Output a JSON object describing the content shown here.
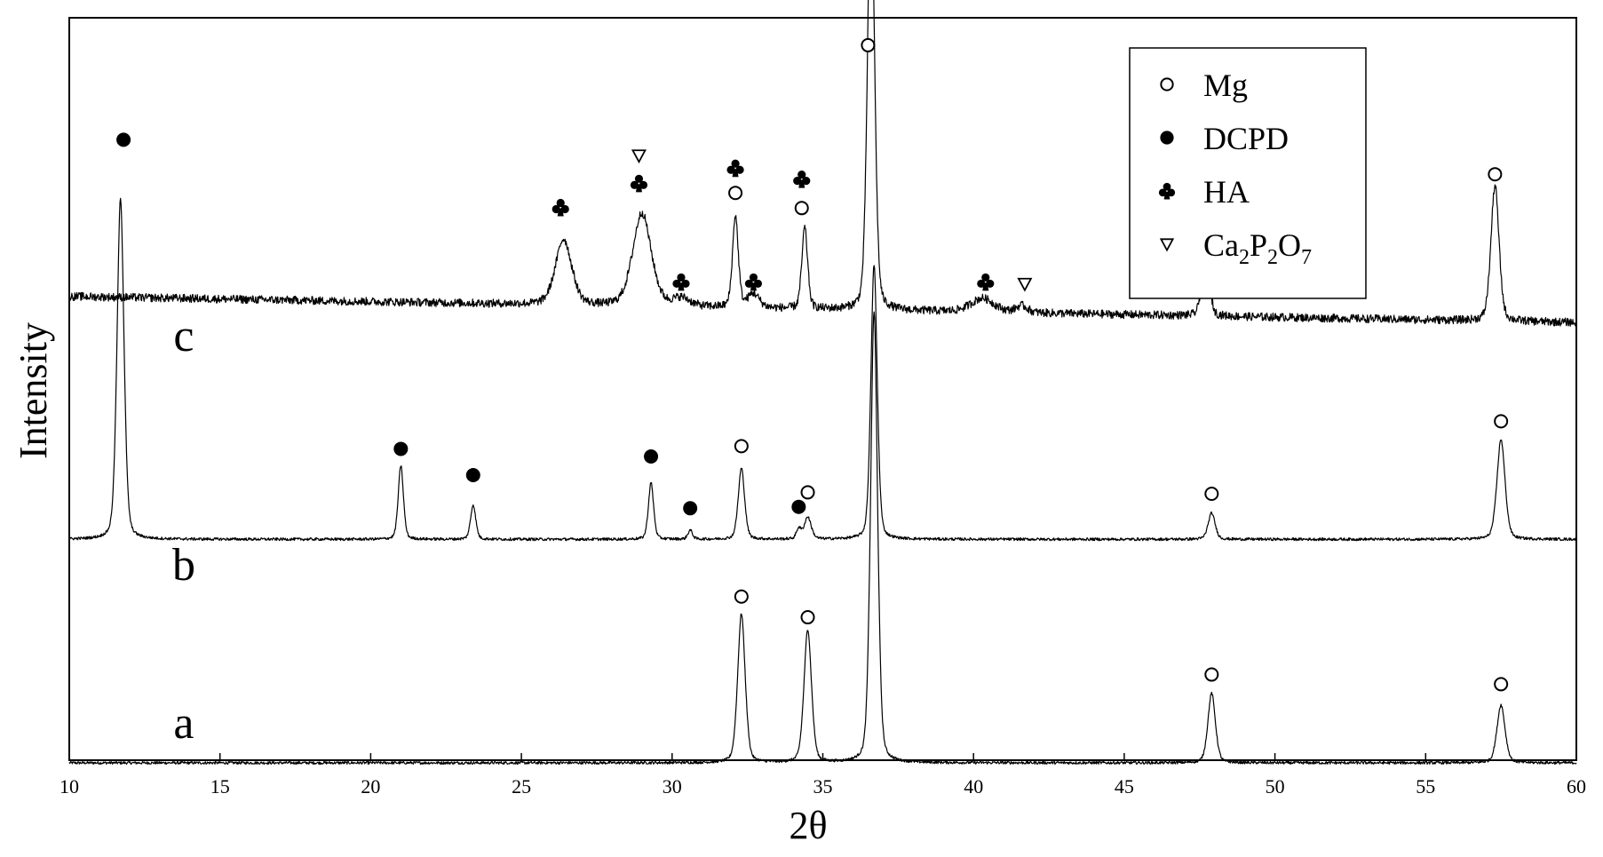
{
  "chart_data": {
    "type": "line",
    "title": "",
    "xlabel": "2θ",
    "ylabel": "Intensity",
    "xlim": [
      10,
      60
    ],
    "x_ticks": [
      10,
      15,
      20,
      25,
      30,
      35,
      40,
      45,
      50,
      55,
      60
    ],
    "y_ticks": [],
    "grid": false,
    "legend_position": "top-right",
    "legend": [
      {
        "marker": "open-circle",
        "label": "Mg"
      },
      {
        "marker": "filled-circle",
        "label": "DCPD"
      },
      {
        "marker": "club",
        "label": "HA"
      },
      {
        "marker": "open-triangle-down",
        "label": "Ca2P2O7",
        "label_parts": [
          [
            "Ca",
            false
          ],
          [
            "2",
            true
          ],
          [
            "P",
            false
          ],
          [
            "2",
            true
          ],
          [
            "O",
            false
          ],
          [
            "7",
            true
          ]
        ]
      }
    ],
    "series": [
      {
        "name": "a",
        "baseline": 0.0,
        "slope": 0.0,
        "noise": 0.002,
        "peaks": [
          {
            "x": 32.3,
            "h": 0.216,
            "w": 0.13
          },
          {
            "x": 34.5,
            "h": 0.193,
            "w": 0.13
          },
          {
            "x": 36.7,
            "h": 0.654,
            "w": 0.12
          },
          {
            "x": 47.9,
            "h": 0.101,
            "w": 0.13
          },
          {
            "x": 57.5,
            "h": 0.084,
            "w": 0.14
          }
        ]
      },
      {
        "name": "b",
        "baseline": 0.324,
        "slope": 0.0,
        "noise": 0.002,
        "peaks": [
          {
            "x": 11.7,
            "h": 0.494,
            "w": 0.12
          },
          {
            "x": 21.0,
            "h": 0.107,
            "w": 0.09
          },
          {
            "x": 23.4,
            "h": 0.05,
            "w": 0.09
          },
          {
            "x": 29.3,
            "h": 0.082,
            "w": 0.09
          },
          {
            "x": 30.6,
            "h": 0.013,
            "w": 0.08
          },
          {
            "x": 32.3,
            "h": 0.103,
            "w": 0.11
          },
          {
            "x": 34.2,
            "h": 0.015,
            "w": 0.08
          },
          {
            "x": 34.5,
            "h": 0.032,
            "w": 0.12
          },
          {
            "x": 36.7,
            "h": 0.398,
            "w": 0.11
          },
          {
            "x": 47.9,
            "h": 0.038,
            "w": 0.12
          },
          {
            "x": 57.5,
            "h": 0.145,
            "w": 0.14
          }
        ]
      },
      {
        "name": "c",
        "baseline": 0.676,
        "slope": -0.000755,
        "noise": 0.006,
        "peaks": [
          {
            "x": 26.4,
            "h": 0.095,
            "w": 0.28
          },
          {
            "x": 29.0,
            "h": 0.135,
            "w": 0.32
          },
          {
            "x": 30.3,
            "h": 0.012,
            "w": 0.3
          },
          {
            "x": 32.1,
            "h": 0.133,
            "w": 0.1
          },
          {
            "x": 32.7,
            "h": 0.02,
            "w": 0.2
          },
          {
            "x": 34.4,
            "h": 0.117,
            "w": 0.1
          },
          {
            "x": 36.6,
            "h": 0.641,
            "w": 0.12
          },
          {
            "x": 40.3,
            "h": 0.02,
            "w": 0.4
          },
          {
            "x": 41.6,
            "h": 0.01,
            "w": 0.2
          },
          {
            "x": 47.7,
            "h": 0.107,
            "w": 0.12
          },
          {
            "x": 57.3,
            "h": 0.197,
            "w": 0.14
          }
        ]
      }
    ],
    "annotations": [
      {
        "marker": "open-circle",
        "x": 32.3,
        "y": 0.241
      },
      {
        "marker": "open-circle",
        "x": 34.5,
        "y": 0.211
      },
      {
        "marker": "open-circle",
        "x": 47.9,
        "y": 0.128
      },
      {
        "marker": "open-circle",
        "x": 57.5,
        "y": 0.114
      },
      {
        "marker": "filled-circle",
        "x": 11.8,
        "y": 0.903
      },
      {
        "marker": "filled-circle",
        "x": 21.0,
        "y": 0.455
      },
      {
        "marker": "filled-circle",
        "x": 23.4,
        "y": 0.417
      },
      {
        "marker": "filled-circle",
        "x": 29.3,
        "y": 0.444
      },
      {
        "marker": "filled-circle",
        "x": 30.6,
        "y": 0.369
      },
      {
        "marker": "filled-circle",
        "x": 34.2,
        "y": 0.371
      },
      {
        "marker": "open-circle",
        "x": 32.3,
        "y": 0.459
      },
      {
        "marker": "open-circle",
        "x": 34.5,
        "y": 0.392
      },
      {
        "marker": "open-circle",
        "x": 47.9,
        "y": 0.39
      },
      {
        "marker": "open-circle",
        "x": 57.5,
        "y": 0.495
      },
      {
        "marker": "open-circle",
        "x": 36.5,
        "y": 1.04
      },
      {
        "marker": "club",
        "x": 26.3,
        "y": 0.805
      },
      {
        "marker": "club",
        "x": 28.9,
        "y": 0.84
      },
      {
        "marker": "open-triangle-down",
        "x": 28.9,
        "y": 0.88
      },
      {
        "marker": "club",
        "x": 30.3,
        "y": 0.697
      },
      {
        "marker": "club",
        "x": 32.1,
        "y": 0.862
      },
      {
        "marker": "open-circle",
        "x": 32.1,
        "y": 0.826
      },
      {
        "marker": "club",
        "x": 32.7,
        "y": 0.697
      },
      {
        "marker": "club",
        "x": 34.3,
        "y": 0.846
      },
      {
        "marker": "open-circle",
        "x": 34.3,
        "y": 0.804
      },
      {
        "marker": "club",
        "x": 40.4,
        "y": 0.697
      },
      {
        "marker": "open-triangle-down",
        "x": 41.7,
        "y": 0.694
      },
      {
        "marker": "open-circle",
        "x": 47.7,
        "y": 0.788
      },
      {
        "marker": "open-circle",
        "x": 57.3,
        "y": 0.853
      }
    ],
    "series_labels": [
      {
        "text": "a",
        "x": 13.8,
        "y": 0.036
      },
      {
        "text": "b",
        "x": 13.8,
        "y": 0.265
      },
      {
        "text": "c",
        "x": 13.8,
        "y": 0.597
      }
    ]
  }
}
